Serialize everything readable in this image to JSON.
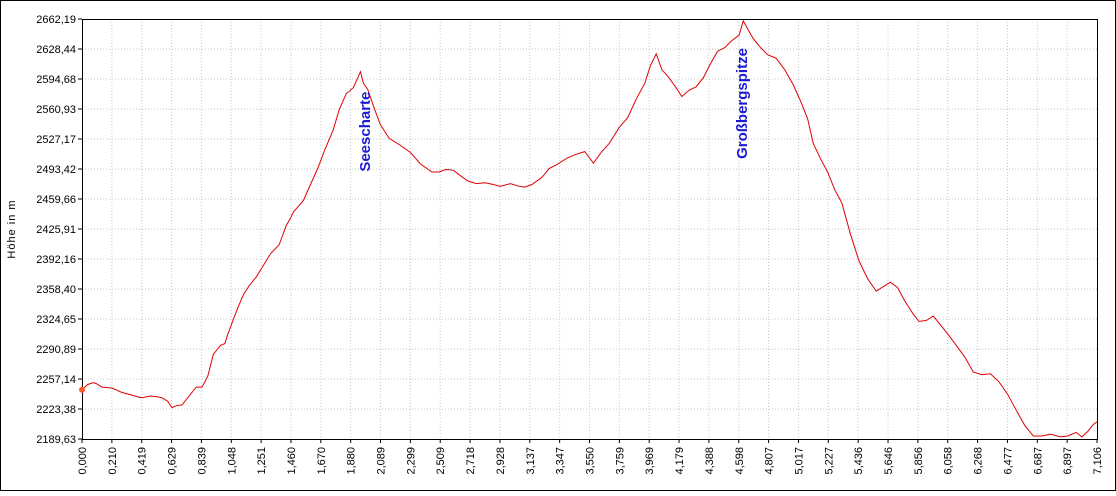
{
  "chart_data": {
    "type": "line",
    "title": "",
    "xlabel": "",
    "ylabel": "Höhe in m",
    "xlim": [
      0,
      7.106
    ],
    "ylim": [
      2189.63,
      2662.19
    ],
    "grid": true,
    "series_color": "#e00000",
    "annotation_color": "#1a1ad6",
    "x_ticks": [
      "0,000",
      "0,210",
      "0,419",
      "0,629",
      "0,839",
      "1,048",
      "1,251",
      "1,460",
      "1,670",
      "1,880",
      "2,089",
      "2,299",
      "2,509",
      "2,718",
      "2,928",
      "3,137",
      "3,347",
      "3,550",
      "3,759",
      "3,969",
      "4,179",
      "4,388",
      "4,598",
      "4,807",
      "5,017",
      "5,227",
      "5,436",
      "5,646",
      "5,856",
      "6,058",
      "6,268",
      "6,477",
      "6,687",
      "6,897",
      "7,106"
    ],
    "y_ticks": [
      "2189,63",
      "2223,38",
      "2257,14",
      "2290,89",
      "2324,65",
      "2358,40",
      "2392,16",
      "2425,91",
      "2459,66",
      "2493,42",
      "2527,17",
      "2560,93",
      "2594,68",
      "2628,44",
      "2662,19"
    ],
    "annotations": [
      {
        "text": "Seescharte",
        "x": 1.98,
        "y": 2594
      },
      {
        "text": "Großbergspitze",
        "x": 4.62,
        "y": 2643
      }
    ],
    "series": [
      {
        "x": [
          0.0,
          0.04,
          0.08,
          0.1,
          0.14,
          0.21,
          0.28,
          0.35,
          0.39,
          0.42,
          0.48,
          0.53,
          0.56,
          0.6,
          0.63,
          0.66,
          0.7,
          0.75,
          0.8,
          0.84,
          0.88,
          0.92,
          0.97,
          1.0,
          1.02,
          1.05,
          1.09,
          1.13,
          1.17,
          1.22,
          1.27,
          1.32,
          1.38,
          1.43,
          1.46,
          1.48,
          1.55,
          1.6,
          1.65,
          1.7,
          1.76,
          1.8,
          1.85,
          1.9,
          1.95,
          1.97,
          2.0,
          2.05,
          2.09,
          2.15,
          2.22,
          2.3,
          2.37,
          2.45,
          2.5,
          2.55,
          2.6,
          2.64,
          2.7,
          2.76,
          2.82,
          2.88,
          2.93,
          3.0,
          3.06,
          3.1,
          3.15,
          3.22,
          3.27,
          3.32,
          3.4,
          3.46,
          3.52,
          3.58,
          3.64,
          3.69,
          3.76,
          3.82,
          3.88,
          3.94,
          3.98,
          4.02,
          4.06,
          4.1,
          4.15,
          4.2,
          4.25,
          4.3,
          4.35,
          4.4,
          4.45,
          4.5,
          4.55,
          4.6,
          4.63,
          4.66,
          4.7,
          4.75,
          4.8,
          4.86,
          4.92,
          4.98,
          5.03,
          5.08,
          5.12,
          5.17,
          5.22,
          5.27,
          5.32,
          5.38,
          5.44,
          5.5,
          5.56,
          5.62,
          5.66,
          5.71,
          5.76,
          5.82,
          5.86,
          5.91,
          5.96,
          6.01,
          6.06,
          6.12,
          6.18,
          6.24,
          6.3,
          6.36,
          6.42,
          6.48,
          6.54,
          6.6,
          6.66,
          6.72,
          6.78,
          6.85,
          6.9,
          6.96,
          7.0,
          7.04,
          7.08,
          7.106
        ],
        "y": [
          2245,
          2251,
          2253,
          2252,
          2248,
          2247,
          2242,
          2239,
          2237,
          2236,
          2238,
          2237,
          2236,
          2232,
          2225,
          2227,
          2228,
          2238,
          2248,
          2248,
          2260,
          2285,
          2295,
          2297,
          2307,
          2320,
          2337,
          2352,
          2362,
          2372,
          2385,
          2398,
          2408,
          2430,
          2438,
          2445,
          2458,
          2476,
          2494,
          2515,
          2538,
          2560,
          2578,
          2585,
          2603,
          2590,
          2583,
          2560,
          2543,
          2528,
          2521,
          2512,
          2499,
          2490,
          2490,
          2493,
          2492,
          2487,
          2480,
          2477,
          2478,
          2476,
          2474,
          2477,
          2474,
          2473,
          2476,
          2484,
          2494,
          2498,
          2506,
          2510,
          2513,
          2500,
          2513,
          2522,
          2540,
          2551,
          2572,
          2590,
          2610,
          2623,
          2605,
          2598,
          2587,
          2575,
          2582,
          2586,
          2596,
          2612,
          2626,
          2630,
          2638,
          2644,
          2660,
          2651,
          2640,
          2630,
          2622,
          2618,
          2605,
          2588,
          2570,
          2550,
          2522,
          2505,
          2490,
          2470,
          2455,
          2420,
          2390,
          2370,
          2356,
          2362,
          2366,
          2360,
          2345,
          2330,
          2322,
          2323,
          2328,
          2318,
          2308,
          2295,
          2282,
          2265,
          2262,
          2263,
          2254,
          2240,
          2222,
          2205,
          2193,
          2193,
          2195,
          2192,
          2193,
          2197,
          2192,
          2198,
          2206,
          2209
        ]
      }
    ]
  }
}
